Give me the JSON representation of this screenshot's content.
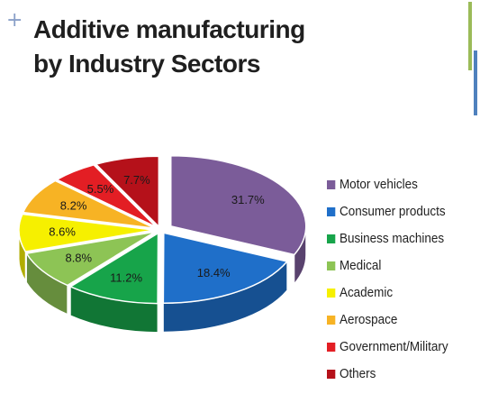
{
  "slide": {
    "plus": "+",
    "title_line1": "Additive manufacturing",
    "title_line2": "by Industry Sectors"
  },
  "chart_data": {
    "type": "pie",
    "style": "3d-exploded",
    "labels": [
      "Motor vehicles",
      "Consumer products",
      "Business machines",
      "Medical",
      "Academic",
      "Aerospace",
      "Government/Military",
      "Others"
    ],
    "values": [
      31.7,
      18.4,
      11.2,
      8.8,
      8.6,
      8.2,
      5.5,
      7.7
    ],
    "value_labels": [
      "31.7%",
      "18.4%",
      "11.2%",
      "8.8%",
      "8.6%",
      "8.2%",
      "5.5%",
      "7.7%"
    ],
    "colors": [
      "#7b5c99",
      "#1f6fc9",
      "#17a44a",
      "#8dc455",
      "#f6f000",
      "#f7b324",
      "#e31e24",
      "#b5111a"
    ],
    "legend_position": "right"
  }
}
